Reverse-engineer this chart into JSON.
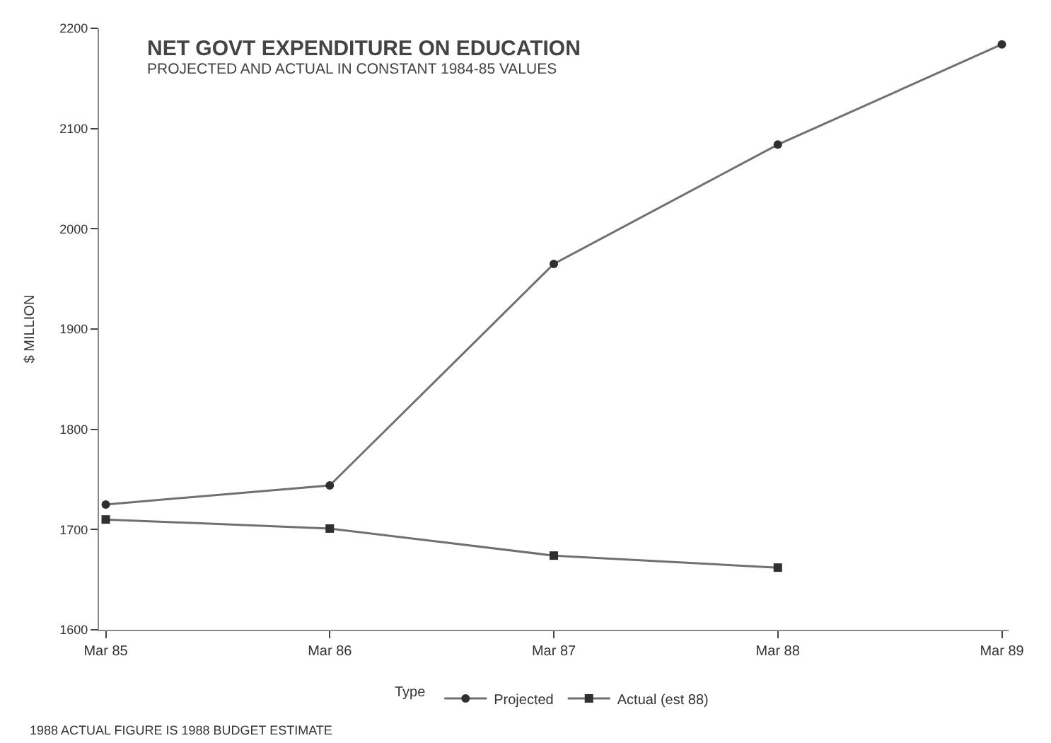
{
  "chart_data": {
    "type": "line",
    "title": "NET GOVT EXPENDITURE ON EDUCATION",
    "subtitle": "PROJECTED AND ACTUAL IN CONSTANT 1984-85 VALUES",
    "ylabel": "$ MILLION",
    "legend_title": "Type",
    "categories": [
      "Mar 85",
      "Mar 86",
      "Mar 87",
      "Mar 88",
      "Mar 89"
    ],
    "series": [
      {
        "name": "Projected",
        "color": "#707070",
        "marker": "circle",
        "values": [
          1725,
          1744,
          1965,
          2084,
          2184
        ]
      },
      {
        "name": "Actual (est 88)",
        "color": "#707070",
        "marker": "square",
        "values": [
          1710,
          1701,
          1674,
          1662,
          null
        ]
      }
    ],
    "ylim": [
      1600,
      2200
    ],
    "yticks": [
      1600,
      1700,
      1800,
      1900,
      2000,
      2100,
      2200
    ],
    "legend": "bottom",
    "line_style": "solid",
    "annotations": [
      "1988 ACTUAL FIGURE IS 1988 BUDGET ESTIMATE"
    ]
  }
}
